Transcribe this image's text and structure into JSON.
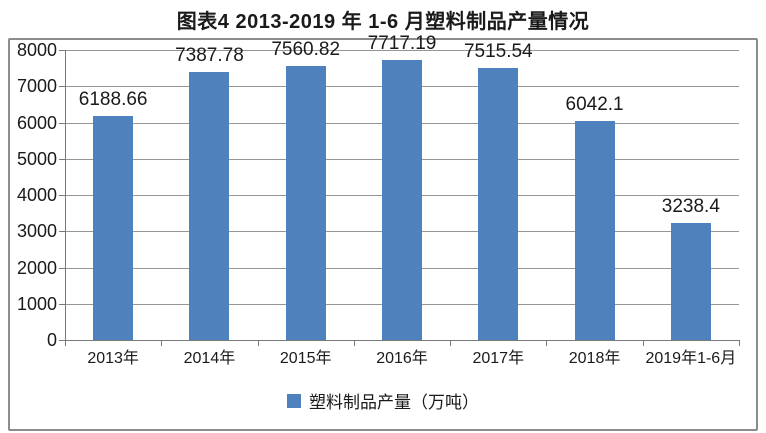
{
  "title": "图表4  2013-2019 年 1-6 月塑料制品产量情况",
  "chart_data": {
    "type": "bar",
    "title": "图表4  2013-2019 年 1-6 月塑料制品产量情况",
    "categories": [
      "2013年",
      "2014年",
      "2015年",
      "2016年",
      "2017年",
      "2018年",
      "2019年1-6月"
    ],
    "series": [
      {
        "name": "塑料制品产量（万吨）",
        "values": [
          6188.66,
          7387.78,
          7560.82,
          7717.19,
          7515.54,
          6042.1,
          3238.4
        ]
      }
    ],
    "value_labels": [
      "6188.66",
      "7387.78",
      "7560.82",
      "7717.19",
      "7515.54",
      "6042.1",
      "3238.4"
    ],
    "xlabel": "",
    "ylabel": "",
    "ylim": [
      0,
      8000
    ],
    "yticks": [
      0,
      1000,
      2000,
      3000,
      4000,
      5000,
      6000,
      7000,
      8000
    ],
    "grid": true,
    "legend_position": "bottom"
  },
  "legend": {
    "label": "塑料制品产量（万吨）"
  },
  "colors": {
    "bar": "#4F81BD",
    "gridline": "#969696",
    "axis": "#7a7a7a",
    "text": "#1a1a1a",
    "frame_border": "#8c8c8c",
    "background": "#ffffff"
  }
}
